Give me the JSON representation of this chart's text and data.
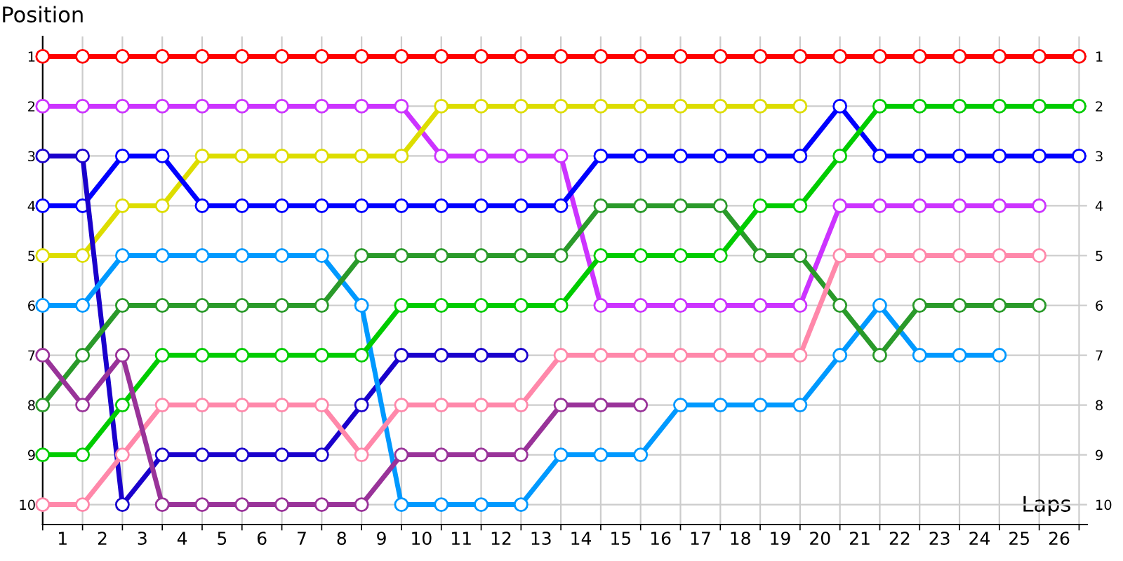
{
  "chart_data": {
    "type": "line",
    "ylabel": "Position",
    "xlabel": "Laps",
    "x": [
      0,
      1,
      2,
      3,
      4,
      5,
      6,
      7,
      8,
      9,
      10,
      11,
      12,
      13,
      14,
      15,
      16,
      17,
      18,
      19,
      20,
      21,
      22,
      23,
      24,
      25,
      26
    ],
    "series": [
      {
        "color": "#ff0000",
        "values": [
          1,
          1,
          1,
          1,
          1,
          1,
          1,
          1,
          1,
          1,
          1,
          1,
          1,
          1,
          1,
          1,
          1,
          1,
          1,
          1,
          1,
          1,
          1,
          1,
          1,
          1,
          1
        ]
      },
      {
        "color": "#cc33ff",
        "values": [
          2,
          2,
          2,
          2,
          2,
          2,
          2,
          2,
          2,
          2,
          3,
          3,
          3,
          3,
          6,
          6,
          6,
          6,
          6,
          6,
          4,
          4,
          4,
          4,
          4,
          4,
          null
        ]
      },
      {
        "color": "#dddd00",
        "values": [
          5,
          5,
          4,
          4,
          3,
          3,
          3,
          3,
          3,
          3,
          2,
          2,
          2,
          2,
          2,
          2,
          2,
          2,
          2,
          2,
          null,
          null,
          null,
          null,
          null,
          null,
          null
        ]
      },
      {
        "color": "#0000ff",
        "values": [
          4,
          4,
          3,
          3,
          4,
          4,
          4,
          4,
          4,
          4,
          4,
          4,
          4,
          4,
          3,
          3,
          3,
          3,
          3,
          3,
          2,
          3,
          3,
          3,
          3,
          3,
          3
        ]
      },
      {
        "color": "#1a00cc",
        "values": [
          3,
          3,
          10,
          9,
          9,
          9,
          9,
          9,
          8,
          7,
          7,
          7,
          7,
          null,
          null,
          null,
          null,
          null,
          null,
          null,
          null,
          null,
          null,
          null,
          null,
          null,
          null
        ]
      },
      {
        "color": "#0099ff",
        "values": [
          6,
          6,
          5,
          5,
          5,
          5,
          5,
          5,
          6,
          10,
          10,
          10,
          10,
          9,
          9,
          9,
          8,
          8,
          8,
          8,
          7,
          6,
          7,
          7,
          7,
          null,
          null
        ]
      },
      {
        "color": "#2a9a2a",
        "values": [
          8,
          7,
          6,
          6,
          6,
          6,
          6,
          6,
          5,
          5,
          5,
          5,
          5,
          5,
          4,
          4,
          4,
          4,
          5,
          5,
          6,
          7,
          6,
          6,
          6,
          6,
          null
        ]
      },
      {
        "color": "#00cc00",
        "values": [
          9,
          9,
          8,
          7,
          7,
          7,
          7,
          7,
          7,
          6,
          6,
          6,
          6,
          6,
          5,
          5,
          5,
          5,
          4,
          4,
          3,
          2,
          2,
          2,
          2,
          2,
          2
        ]
      },
      {
        "color": "#ff88aa",
        "values": [
          10,
          10,
          9,
          8,
          8,
          8,
          8,
          8,
          9,
          8,
          8,
          8,
          8,
          7,
          7,
          7,
          7,
          7,
          7,
          7,
          5,
          5,
          5,
          5,
          5,
          5,
          null
        ]
      },
      {
        "color": "#993399",
        "values": [
          7,
          8,
          7,
          10,
          10,
          10,
          10,
          10,
          10,
          9,
          9,
          9,
          9,
          8,
          8,
          8,
          null,
          null,
          null,
          null,
          null,
          null,
          null,
          null,
          null,
          null,
          null
        ]
      }
    ],
    "xlim": [
      0,
      26.2
    ],
    "xticks": [
      {
        "value": 0,
        "label": null
      },
      {
        "value": 1,
        "label": null
      },
      {
        "value": 2,
        "label": null
      },
      {
        "value": 3,
        "label": null
      },
      {
        "value": 4,
        "label": null
      },
      {
        "value": 5,
        "label": null
      },
      {
        "value": 6,
        "label": null
      },
      {
        "value": 7,
        "label": null
      },
      {
        "value": 8,
        "label": null
      },
      {
        "value": 9,
        "label": null
      },
      {
        "value": 10,
        "label": null
      },
      {
        "value": 11,
        "label": null
      },
      {
        "value": 12,
        "label": null
      },
      {
        "value": 13,
        "label": null
      },
      {
        "value": 14,
        "label": null
      },
      {
        "value": 15,
        "label": null
      },
      {
        "value": 16,
        "label": null
      },
      {
        "value": 17,
        "label": null
      },
      {
        "value": 18,
        "label": null
      },
      {
        "value": 19,
        "label": null
      },
      {
        "value": 20,
        "label": null
      },
      {
        "value": 21,
        "label": null
      },
      {
        "value": 22,
        "label": null
      },
      {
        "value": 23,
        "label": null
      },
      {
        "value": 24,
        "label": null
      },
      {
        "value": 25,
        "label": null
      },
      {
        "value": 26,
        "label": null
      },
      {
        "value": 0.5,
        "label": "1"
      },
      {
        "value": 1.5,
        "label": "2"
      },
      {
        "value": 2.5,
        "label": "3"
      },
      {
        "value": 3.5,
        "label": "4"
      },
      {
        "value": 4.5,
        "label": "5"
      },
      {
        "value": 5.5,
        "label": "6"
      },
      {
        "value": 6.5,
        "label": "7"
      },
      {
        "value": 7.5,
        "label": "8"
      },
      {
        "value": 8.5,
        "label": "9"
      },
      {
        "value": 9.5,
        "label": "10"
      },
      {
        "value": 10.5,
        "label": "11"
      },
      {
        "value": 11.5,
        "label": "12"
      },
      {
        "value": 12.5,
        "label": "13"
      },
      {
        "value": 13.5,
        "label": "14"
      },
      {
        "value": 14.5,
        "label": "15"
      },
      {
        "value": 15.5,
        "label": "16"
      },
      {
        "value": 16.5,
        "label": "17"
      },
      {
        "value": 17.5,
        "label": "18"
      },
      {
        "value": 18.5,
        "label": "19"
      },
      {
        "value": 19.5,
        "label": "20"
      },
      {
        "value": 20.5,
        "label": "21"
      },
      {
        "value": 21.5,
        "label": "22"
      },
      {
        "value": 22.5,
        "label": "23"
      },
      {
        "value": 23.5,
        "label": "24"
      },
      {
        "value": 24.5,
        "label": "25"
      },
      {
        "value": 25.5,
        "label": "26"
      }
    ],
    "ylim": [
      10.4,
      0.6
    ],
    "yticks": [
      1,
      2,
      3,
      4,
      5,
      6,
      7,
      8,
      9,
      10
    ],
    "y2lim": [
      10.4,
      0.6
    ],
    "y2ticks": [
      1,
      2,
      3,
      4,
      5,
      6,
      7,
      8,
      9,
      10
    ],
    "grid": true,
    "legend": false,
    "marker": "circle",
    "line_style": "solid"
  }
}
